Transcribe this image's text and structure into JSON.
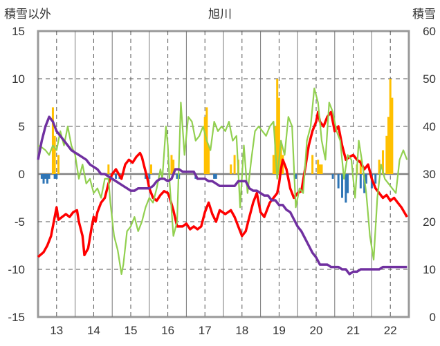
{
  "chart_data": {
    "type": "line",
    "title": "旭川",
    "ylabel_left": "積雪以外",
    "ylabel_right": "積雪",
    "x_ticks": [
      "13",
      "14",
      "15",
      "16",
      "17",
      "18",
      "19",
      "20",
      "21",
      "22"
    ],
    "x_range": [
      12.5,
      22.5
    ],
    "y_left_range": [
      -15,
      15
    ],
    "y_left_ticks": [
      15,
      10,
      5,
      0,
      -5,
      -10,
      -15
    ],
    "y_right_range": [
      0,
      60
    ],
    "y_right_ticks": [
      60,
      50,
      40,
      30,
      20,
      10,
      0
    ],
    "grid": true,
    "colors": {
      "red": "#ff0000",
      "green": "#92d050",
      "purple": "#7030a0",
      "orange_bars": "#ffc000",
      "blue_bars": "#2e75b6"
    },
    "series": [
      {
        "color": "red",
        "axis": "left",
        "x": [
          12.5,
          12.65,
          12.75,
          12.85,
          12.95,
          13.0,
          13.05,
          13.15,
          13.25,
          13.35,
          13.45,
          13.55,
          13.6,
          13.7,
          13.75,
          13.85,
          13.95,
          14.0,
          14.05,
          14.1,
          14.2,
          14.3,
          14.4,
          14.5,
          14.6,
          14.75,
          14.85,
          14.95,
          15.05,
          15.15,
          15.25,
          15.3,
          15.35,
          15.45,
          15.5,
          15.6,
          15.7,
          15.8,
          15.9,
          16.0,
          16.05,
          16.15,
          16.25,
          16.4,
          16.5,
          16.6,
          16.7,
          16.8,
          16.9,
          17.0,
          17.1,
          17.2,
          17.3,
          17.4,
          17.55,
          17.7,
          17.8,
          17.9,
          18.0,
          18.1,
          18.2,
          18.3,
          18.4,
          18.5,
          18.6,
          18.75,
          18.85,
          18.95,
          19.0,
          19.05,
          19.1,
          19.2,
          19.3,
          19.4,
          19.5,
          19.6,
          19.7,
          19.8,
          19.9,
          20.0,
          20.05,
          20.1,
          20.2,
          20.3,
          20.4,
          20.5,
          20.6,
          20.7,
          20.8,
          20.9,
          21.0,
          21.1,
          21.2,
          21.3,
          21.4,
          21.5,
          21.6,
          21.7,
          21.8,
          21.9,
          22.0,
          22.1,
          22.2,
          22.3,
          22.45
        ],
        "y": [
          -8.7,
          -8.2,
          -7.5,
          -6.5,
          -4.5,
          -3.5,
          -4.8,
          -4.5,
          -4.2,
          -4.5,
          -4.0,
          -3.8,
          -5.0,
          -6.5,
          -8.5,
          -7.8,
          -5.5,
          -4.5,
          -5.0,
          -4.0,
          -3.0,
          -2.5,
          -1.0,
          0.0,
          0.5,
          -0.5,
          1.0,
          1.5,
          1.2,
          1.8,
          2.2,
          1.8,
          1.0,
          -0.5,
          -1.5,
          -2.5,
          -2.8,
          -2.2,
          -1.8,
          -2.0,
          -2.5,
          -3.8,
          -5.5,
          -5.5,
          -5.2,
          -5.8,
          -5.5,
          -5.8,
          -5.5,
          -4.0,
          -3.0,
          -4.2,
          -5.0,
          -3.8,
          -4.2,
          -3.8,
          -4.5,
          -5.5,
          -6.5,
          -6.0,
          -4.5,
          -3.0,
          -2.0,
          -4.0,
          -4.5,
          -3.0,
          -2.5,
          -2.0,
          -1.0,
          0.5,
          1.5,
          0.5,
          -1.5,
          -2.5,
          -2.0,
          -1.8,
          0.5,
          3.0,
          4.5,
          5.5,
          6.5,
          5.5,
          5.0,
          6.0,
          6.5,
          4.5,
          5.0,
          3.0,
          1.5,
          1.8,
          2.0,
          1.5,
          1.2,
          0.5,
          1.0,
          -0.5,
          -1.5,
          -2.0,
          -2.5,
          -2.2,
          -2.8,
          -2.5,
          -3.0,
          -3.5,
          -4.5
        ]
      },
      {
        "color": "green",
        "axis": "left",
        "x": [
          12.5,
          12.6,
          12.7,
          12.8,
          12.9,
          13.0,
          13.05,
          13.1,
          13.2,
          13.3,
          13.4,
          13.5,
          13.6,
          13.7,
          13.8,
          13.9,
          14.0,
          14.1,
          14.2,
          14.3,
          14.4,
          14.45,
          14.55,
          14.65,
          14.75,
          14.8,
          14.9,
          15.0,
          15.1,
          15.2,
          15.3,
          15.4,
          15.5,
          15.6,
          15.7,
          15.8,
          15.85,
          15.95,
          16.0,
          16.05,
          16.15,
          16.25,
          16.35,
          16.45,
          16.55,
          16.65,
          16.75,
          16.85,
          16.95,
          17.05,
          17.15,
          17.25,
          17.35,
          17.45,
          17.55,
          17.65,
          17.75,
          17.85,
          17.95,
          18.05,
          18.15,
          18.25,
          18.35,
          18.45,
          18.55,
          18.65,
          18.75,
          18.85,
          18.95,
          19.05,
          19.15,
          19.25,
          19.35,
          19.45,
          19.55,
          19.65,
          19.75,
          19.85,
          19.95,
          20.05,
          20.15,
          20.25,
          20.35,
          20.45,
          20.55,
          20.65,
          20.75,
          20.85,
          20.95,
          21.05,
          21.15,
          21.25,
          21.35,
          21.45,
          21.55,
          21.65,
          21.75,
          21.85,
          21.95,
          22.05,
          22.15,
          22.25,
          22.35,
          22.45
        ],
        "y": [
          3.0,
          2.8,
          2.5,
          2.0,
          3.0,
          2.5,
          3.5,
          4.5,
          3.0,
          5.0,
          3.0,
          2.0,
          -0.5,
          1.0,
          -1.0,
          -0.5,
          -2.0,
          -1.5,
          -2.5,
          -0.5,
          -0.5,
          -3.0,
          -6.5,
          -8.0,
          -10.5,
          -9.5,
          -6.0,
          -5.5,
          -4.5,
          -6.0,
          -5.0,
          -3.5,
          -2.5,
          -3.0,
          -1.5,
          0.5,
          -0.5,
          5.0,
          3.0,
          -1.0,
          -6.5,
          -5.0,
          7.5,
          2.0,
          6.0,
          5.5,
          3.5,
          4.0,
          5.0,
          3.5,
          2.5,
          5.5,
          4.5,
          5.0,
          4.5,
          5.5,
          3.5,
          4.0,
          -3.5,
          3.0,
          -2.0,
          1.5,
          4.5,
          5.0,
          4.5,
          4.0,
          5.0,
          5.5,
          -0.5,
          3.5,
          2.0,
          6.0,
          5.0,
          -3.5,
          -1.5,
          -2.0,
          3.5,
          5.0,
          9.0,
          7.5,
          3.5,
          1.5,
          7.5,
          6.5,
          4.5,
          3.5,
          -0.5,
          2.0,
          1.5,
          -2.5,
          3.5,
          1.0,
          -2.0,
          -6.5,
          -9.0,
          -2.5,
          1.0,
          -0.5,
          -1.0,
          -1.5,
          -2.0,
          1.5,
          2.5,
          1.5
        ]
      },
      {
        "color": "purple",
        "axis": "right",
        "x": [
          12.5,
          12.6,
          12.7,
          12.8,
          12.9,
          13.0,
          13.1,
          13.2,
          13.3,
          13.4,
          13.5,
          13.6,
          13.7,
          13.8,
          13.9,
          14.0,
          14.1,
          14.2,
          14.3,
          14.4,
          14.5,
          14.6,
          14.7,
          14.8,
          14.9,
          15.0,
          15.1,
          15.2,
          15.3,
          15.4,
          15.5,
          15.6,
          15.7,
          15.8,
          15.9,
          16.0,
          16.1,
          16.2,
          16.3,
          16.4,
          16.5,
          16.6,
          16.7,
          16.8,
          16.9,
          17.0,
          17.1,
          17.2,
          17.3,
          17.4,
          17.5,
          17.6,
          17.7,
          17.8,
          17.9,
          18.0,
          18.1,
          18.2,
          18.3,
          18.4,
          18.5,
          18.6,
          18.7,
          18.8,
          18.9,
          19.0,
          19.1,
          19.2,
          19.3,
          19.4,
          19.5,
          19.6,
          19.7,
          19.8,
          19.9,
          20.0,
          20.1,
          20.2,
          20.3,
          20.4,
          20.5,
          20.6,
          20.7,
          20.8,
          20.9,
          21.0,
          21.1,
          21.2,
          21.3,
          21.4,
          21.5,
          21.6,
          21.7,
          21.8,
          21.9,
          22.0,
          22.1,
          22.2,
          22.3,
          22.45
        ],
        "y": [
          33.0,
          37.0,
          40.0,
          42.0,
          41.0,
          39.0,
          38.0,
          37.0,
          36.0,
          35.0,
          34.5,
          34.0,
          33.5,
          33.0,
          32.0,
          31.5,
          31.0,
          30.0,
          30.0,
          29.5,
          29.0,
          28.5,
          28.0,
          27.5,
          27.0,
          26.5,
          26.5,
          27.0,
          27.0,
          27.0,
          27.0,
          27.5,
          28.5,
          29.0,
          29.0,
          28.5,
          29.0,
          31.0,
          31.0,
          30.5,
          30.5,
          30.5,
          30.5,
          29.0,
          29.0,
          29.0,
          28.5,
          28.5,
          28.0,
          27.5,
          27.5,
          27.5,
          27.5,
          27.5,
          28.5,
          28.5,
          28.5,
          27.0,
          26.5,
          26.5,
          26.0,
          25.5,
          25.5,
          24.5,
          24.5,
          23.5,
          23.5,
          22.5,
          22.0,
          20.5,
          19.0,
          18.0,
          16.5,
          15.0,
          13.5,
          12.5,
          11.0,
          11.0,
          11.0,
          10.5,
          10.5,
          10.5,
          10.0,
          10.0,
          9.0,
          9.5,
          9.5,
          10.0,
          10.0,
          10.0,
          10.0,
          10.0,
          10.0,
          10.5,
          10.5,
          10.5,
          10.5,
          10.5,
          10.5,
          10.5
        ]
      }
    ],
    "bars_orange": {
      "axis": "left",
      "x": [
        12.9,
        12.95,
        13.05,
        14.4,
        15.55,
        16.1,
        16.15,
        17.0,
        17.05,
        17.1,
        17.7,
        17.8,
        17.9,
        18.85,
        18.9,
        18.95,
        19.0,
        19.05,
        19.1,
        19.9,
        20.05,
        20.15,
        20.1,
        21.1,
        21.2,
        21.7,
        21.8,
        21.9,
        21.95,
        22.0,
        22.05
      ],
      "y": [
        7.0,
        4.0,
        2.0,
        1.0,
        1.0,
        2.0,
        1.5,
        6.0,
        7.0,
        3.0,
        1.0,
        2.0,
        1.5,
        2.0,
        5.0,
        10.0,
        8.0,
        3.0,
        2.0,
        2.0,
        1.5,
        1.0,
        1.0,
        1.0,
        1.5,
        1.5,
        2.5,
        4.0,
        6.0,
        10.0,
        8.0
      ]
    },
    "bars_blue": {
      "axis": "left",
      "x": [
        12.6,
        12.65,
        12.7,
        12.75,
        12.8,
        12.95,
        13.0,
        14.6,
        14.7,
        15.4,
        15.5,
        16.25,
        16.3,
        16.75,
        17.25,
        17.3,
        19.45,
        20.45,
        20.6,
        20.7,
        20.8,
        20.85,
        21.2,
        21.3,
        21.35,
        21.5,
        21.6
      ],
      "y": [
        -0.5,
        -1.0,
        -0.5,
        -1.0,
        -0.5,
        -0.5,
        -0.5,
        -0.5,
        -0.5,
        -0.5,
        -0.5,
        -0.5,
        -0.5,
        -0.5,
        -0.5,
        -0.5,
        -0.5,
        -0.5,
        -1.5,
        -2.5,
        -3.0,
        -2.0,
        -1.5,
        -2.0,
        -1.0,
        -1.5,
        -1.0
      ]
    }
  }
}
